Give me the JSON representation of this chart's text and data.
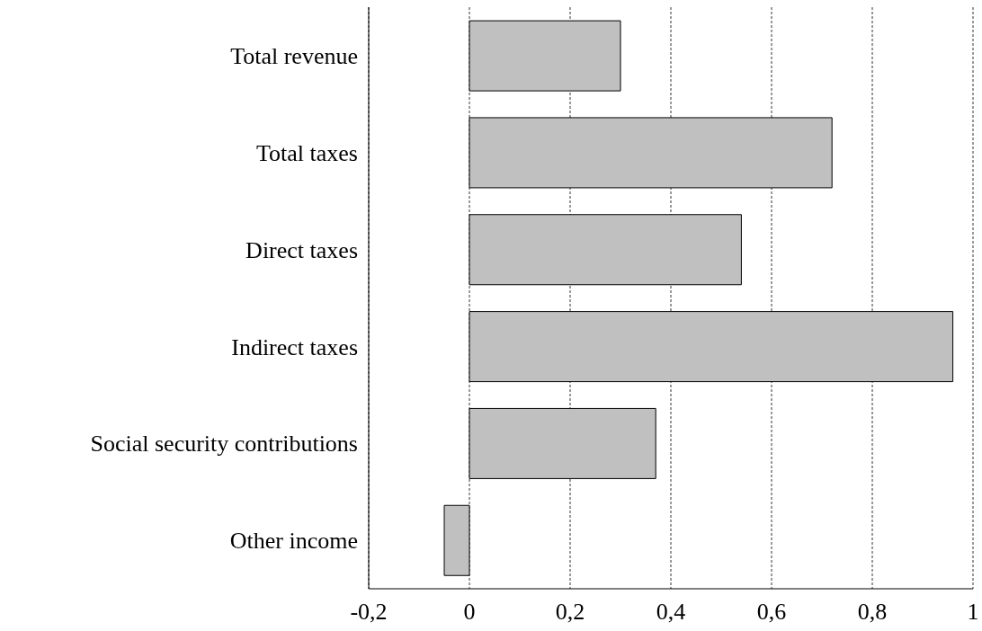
{
  "chart_data": {
    "type": "bar",
    "orientation": "horizontal",
    "categories": [
      "Total revenue",
      "Total taxes",
      "Direct taxes",
      "Indirect taxes",
      "Social security contributions",
      "Other income"
    ],
    "values": [
      0.3,
      0.72,
      0.54,
      0.96,
      0.37,
      -0.05
    ],
    "color": "#c0c0c0",
    "xlim": [
      -0.2,
      1
    ],
    "xticks": [
      {
        "value": -0.2,
        "label": "-0,2"
      },
      {
        "value": 0,
        "label": "0"
      },
      {
        "value": 0.2,
        "label": "0,2"
      },
      {
        "value": 0.4,
        "label": "0,4"
      },
      {
        "value": 0.6,
        "label": "0,6"
      },
      {
        "value": 0.8,
        "label": "0,8"
      },
      {
        "value": 1,
        "label": "1"
      }
    ],
    "grid": "x",
    "legend": false
  }
}
